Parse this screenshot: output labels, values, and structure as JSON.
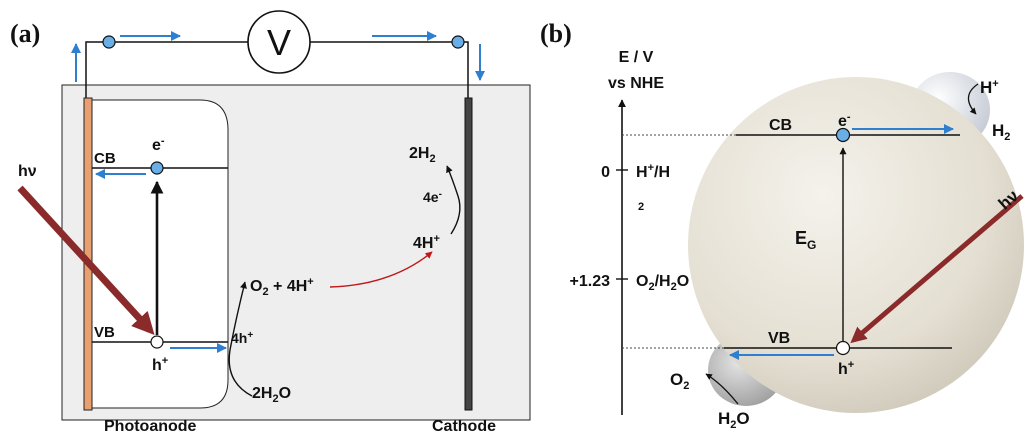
{
  "colors": {
    "electron": "#2e7fd0",
    "electron_fill": "#6aaee8",
    "photon_arrow": "#8b2a2a",
    "reaction_arrow": "#c01818",
    "photoanode": "#e8a070",
    "cathode": "#444444",
    "cell_bg": "#eeeeee"
  },
  "panel_a": {
    "label": "(a)",
    "voltmeter": "V",
    "light": "hν",
    "cb": "CB",
    "vb": "VB",
    "electron": "e",
    "electron_sup": "-",
    "hole": "h",
    "hole_sup": "+",
    "holes_count": "4h",
    "holes_count_sup": "+",
    "water_pre": "2H",
    "water_sub": "2",
    "water_post": "O",
    "oxygen_pre": "O",
    "oxygen_sub": "2",
    "oxygen_post": " + 4H",
    "oxygen_sup": "+",
    "protons": "4H",
    "protons_sup": "+",
    "electrons4": "4e",
    "electrons4_sup": "-",
    "hydrogen": "2H",
    "hydrogen_sub": "2",
    "photoanode_label": "Photoanode",
    "cathode_label": "Cathode"
  },
  "panel_b": {
    "label": "(b)",
    "axis_title_line1": "E / V",
    "axis_title_line2": "vs NHE",
    "tick_zero": "0",
    "tick_zero_couple_main": "H",
    "tick_zero_couple_sup": "+",
    "tick_zero_couple_after": "/H",
    "tick_zero_couple_sub": "2",
    "tick_123": "+1.23",
    "tick_123_couple_pre": "O",
    "tick_123_couple_sub": "2",
    "tick_123_couple_post": "/H",
    "tick_123_couple_sub2": "2",
    "tick_123_couple_end": "O",
    "cb": "CB",
    "vb": "VB",
    "electron": "e",
    "electron_sup": "-",
    "hole": "h",
    "hole_sup": "+",
    "gap": "E",
    "gap_sub": "G",
    "light": "hν",
    "proton": "H",
    "proton_sup": "+",
    "hydrogen": "H",
    "hydrogen_sub": "2",
    "oxygen": "O",
    "oxygen_sub": "2",
    "water_pre": "H",
    "water_sub": "2",
    "water_post": "O"
  }
}
